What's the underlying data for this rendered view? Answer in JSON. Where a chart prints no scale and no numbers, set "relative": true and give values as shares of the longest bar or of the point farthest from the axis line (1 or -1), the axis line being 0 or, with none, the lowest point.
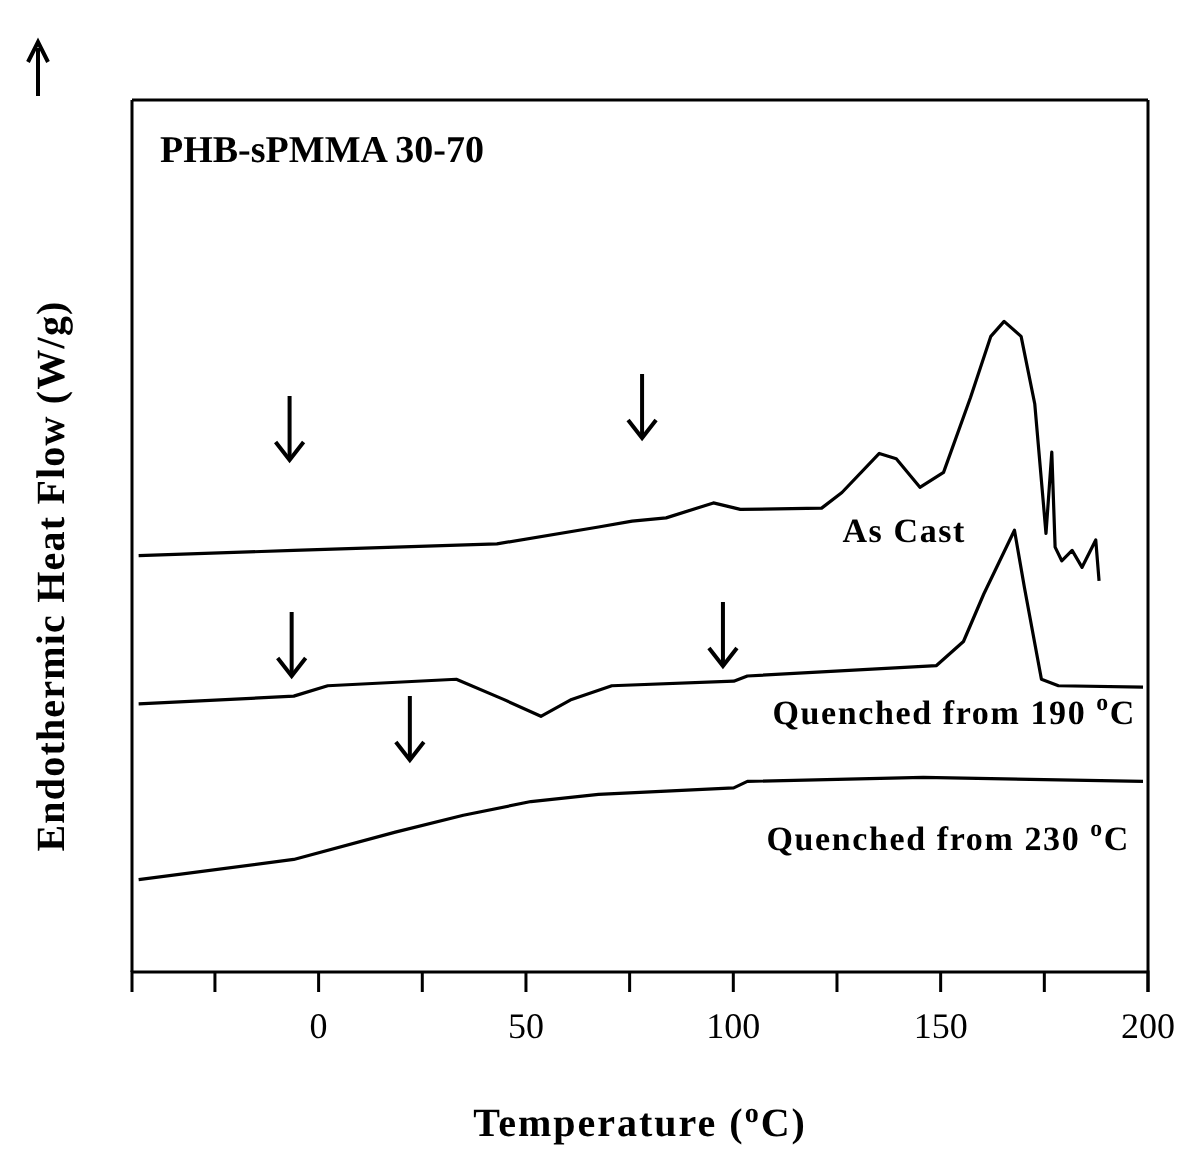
{
  "chart_data": {
    "type": "line",
    "relative": true,
    "title": "PHB-sPMMA 30-70",
    "xlabel": "Temperature ($^{o}$C)",
    "ylabel": "Endothermic Heat Flow (W/g)",
    "xlim": [
      -45,
      200
    ],
    "xticks": [
      {
        "value": -25,
        "label": null
      },
      0,
      {
        "value": 25,
        "label": null
      },
      50,
      {
        "value": 75,
        "label": null
      },
      100,
      {
        "value": 125,
        "label": null
      },
      150,
      {
        "value": 175,
        "label": null
      },
      200
    ],
    "legend": false,
    "grid": false,
    "marker": "none",
    "line_style": "solid",
    "series": [
      {
        "name": "As Cast",
        "color": "#000000",
        "x": [
          -43.4,
          -6,
          43,
          67.5,
          75.6,
          83.8,
          95.2,
          101.7,
          121.3,
          126.2,
          135.2,
          139.3,
          145,
          150.7,
          157.2,
          162.1,
          165.3,
          169.4,
          172.7,
          175.4,
          176.8,
          177.6,
          179.2,
          181.7,
          184.1,
          187.4,
          188.2
        ],
        "values": [
          0.64,
          0.648,
          0.658,
          0.684,
          0.693,
          0.698,
          0.721,
          0.711,
          0.713,
          0.737,
          0.797,
          0.789,
          0.745,
          0.768,
          0.883,
          0.977,
          1,
          0.977,
          0.873,
          0.674,
          0.799,
          0.653,
          0.632,
          0.648,
          0.622,
          0.664,
          0.601
        ]
      },
      {
        "name": "Quenched from 190 $^{o}$C",
        "color": "#000000",
        "x": [
          -43.4,
          -6,
          2.2,
          33.2,
          44.6,
          53.6,
          61,
          70.7,
          100.1,
          103.4,
          149,
          155.5,
          160.4,
          167.8,
          170.2,
          174.3,
          178.4,
          198.8
        ],
        "values": [
          0.412,
          0.424,
          0.44,
          0.45,
          0.419,
          0.393,
          0.419,
          0.44,
          0.447,
          0.455,
          0.471,
          0.508,
          0.581,
          0.679,
          0.591,
          0.45,
          0.44,
          0.438
        ]
      },
      {
        "name": "Quenched from 230 $^{o}$C",
        "color": "#000000",
        "x": [
          -43.4,
          -6,
          18.5,
          34.9,
          51.2,
          67.5,
          100.1,
          103.4,
          145.8,
          198.8
        ],
        "values": [
          0.142,
          0.173,
          0.215,
          0.241,
          0.262,
          0.273,
          0.283,
          0.293,
          0.299,
          0.293
        ]
      }
    ]
  }
}
